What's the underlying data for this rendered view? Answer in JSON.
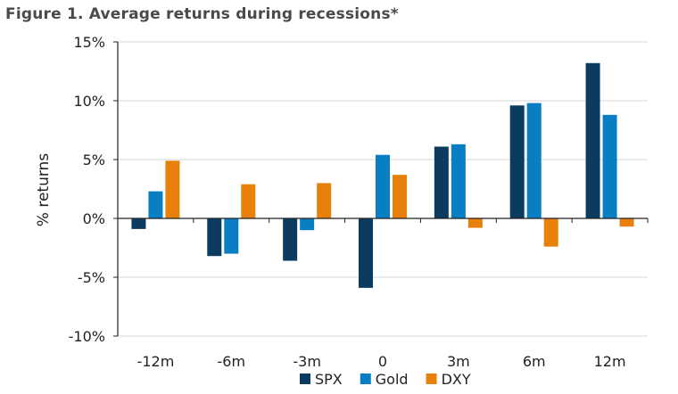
{
  "chart_data": {
    "type": "bar",
    "title": "Figure 1. Average returns during recessions*",
    "xlabel": "",
    "ylabel": "% returns",
    "ylim": [
      -10,
      15
    ],
    "yticks": [
      15,
      10,
      5,
      0,
      -5,
      -10
    ],
    "ytick_labels": [
      "15%",
      "10%",
      "5%",
      "0%",
      "-5%",
      "-10%"
    ],
    "categories": [
      "-12m",
      "-6m",
      "-3m",
      "0",
      "3m",
      "6m",
      "12m"
    ],
    "series": [
      {
        "name": "SPX",
        "color": "#0b3b5e",
        "values": [
          -0.9,
          -3.2,
          -3.6,
          -5.9,
          6.1,
          9.6,
          13.2
        ]
      },
      {
        "name": "Gold",
        "color": "#0a7ec2",
        "values": [
          2.3,
          -3.0,
          -1.0,
          5.4,
          6.3,
          9.8,
          8.8
        ]
      },
      {
        "name": "DXY",
        "color": "#e8800c",
        "values": [
          4.9,
          2.9,
          3.0,
          3.7,
          -0.8,
          -2.4,
          -0.7
        ]
      }
    ],
    "grid": true,
    "legend_position": "bottom"
  }
}
